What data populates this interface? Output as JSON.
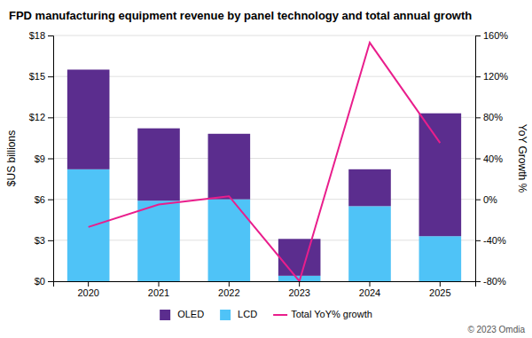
{
  "chart_data": {
    "type": "bar",
    "title": "FPD manufacturing equipment revenue by panel technology and total annual growth",
    "categories": [
      "2020",
      "2021",
      "2022",
      "2023",
      "2024",
      "2025"
    ],
    "ylabel": "$US billions",
    "y2label": "YoY Growth %",
    "ylim": [
      0,
      18
    ],
    "yticks": [
      {
        "value": 0,
        "label": "$0"
      },
      {
        "value": 3,
        "label": "$3"
      },
      {
        "value": 6,
        "label": "$6"
      },
      {
        "value": 9,
        "label": "$9"
      },
      {
        "value": 12,
        "label": "$12"
      },
      {
        "value": 15,
        "label": "$15"
      },
      {
        "value": 18,
        "label": "$18"
      }
    ],
    "y2lim": [
      -80,
      160
    ],
    "y2ticks": [
      {
        "value": -80,
        "label": "-80%"
      },
      {
        "value": -40,
        "label": "-40%"
      },
      {
        "value": 0,
        "label": "0%"
      },
      {
        "value": 40,
        "label": "40%"
      },
      {
        "value": 80,
        "label": "80%"
      },
      {
        "value": 120,
        "label": "120%"
      },
      {
        "value": 160,
        "label": "160%"
      }
    ],
    "stacked": true,
    "grid": true,
    "legend": "bottom",
    "series": [
      {
        "name": "LCD",
        "color": "#4FC3F7",
        "values": [
          8.2,
          5.9,
          6.0,
          0.4,
          5.5,
          3.3
        ]
      },
      {
        "name": "OLED",
        "color": "#5B2D8E",
        "values": [
          7.3,
          5.3,
          4.8,
          2.7,
          2.7,
          9.0
        ]
      },
      {
        "name": "Total YoY% growth",
        "type": "line",
        "axis": "y2",
        "color": "#E91E8C",
        "values": [
          -27,
          -5,
          3,
          -80,
          153,
          55
        ]
      }
    ],
    "annotations": [
      "© 2023 Omdia"
    ]
  }
}
